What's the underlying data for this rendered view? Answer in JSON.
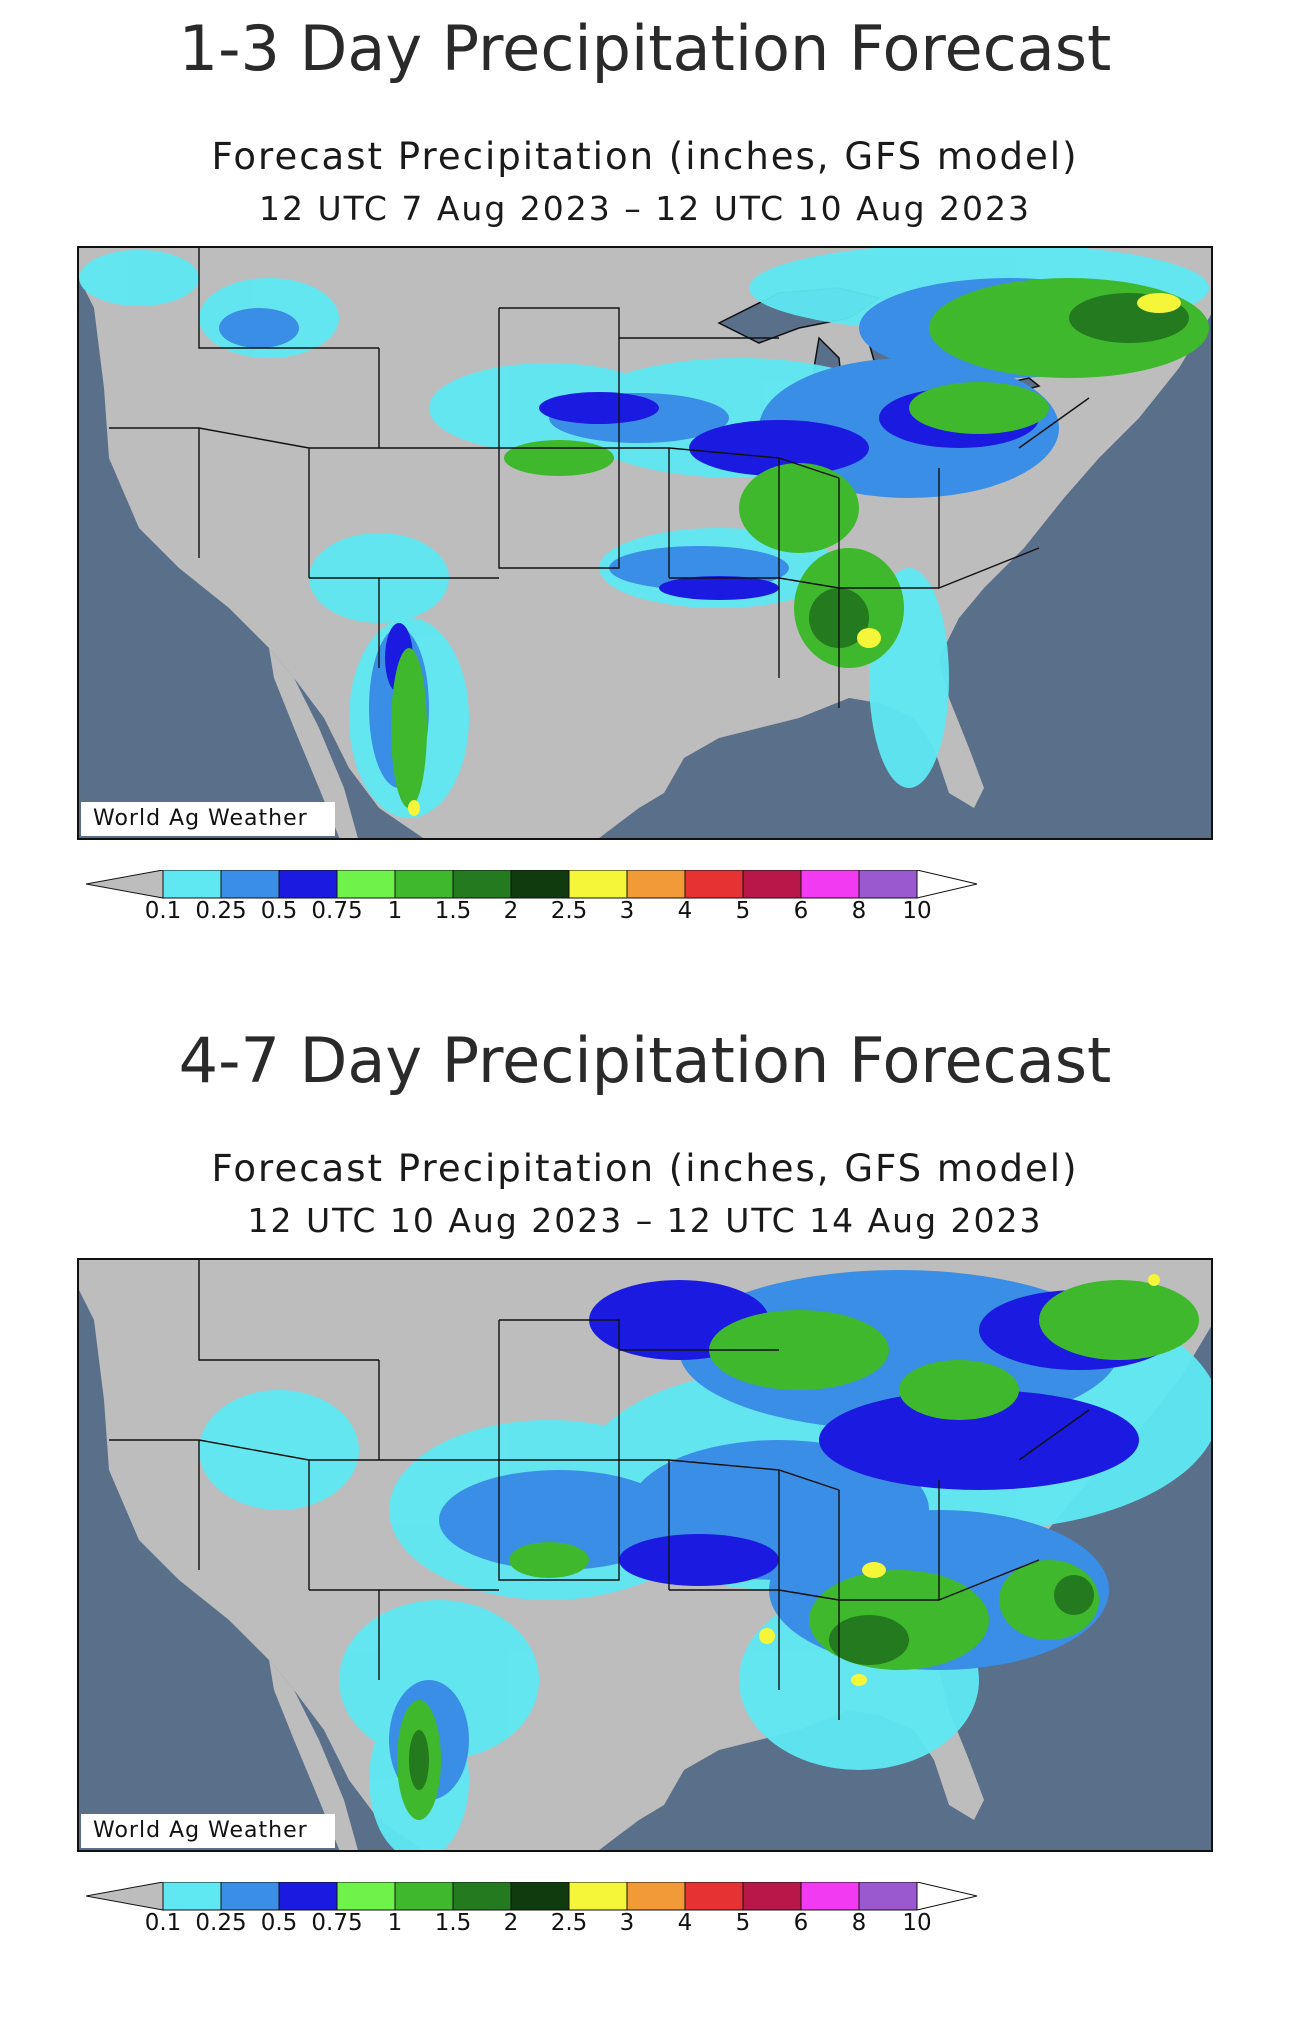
{
  "panels": [
    {
      "heading": "1-3 Day Precipitation Forecast",
      "subtitle": "Forecast Precipitation (inches, GFS model)",
      "period": "12 UTC 7 Aug 2023 – 12 UTC 10 Aug 2023",
      "credit": "World Ag Weather"
    },
    {
      "heading": "4-7 Day Precipitation Forecast",
      "subtitle": "Forecast Precipitation (inches, GFS model)",
      "period": "12 UTC 10 Aug 2023 – 12 UTC 14 Aug 2023",
      "credit": "World Ag Weather"
    }
  ],
  "legend": {
    "ticks": [
      "0.1",
      "0.25",
      "0.5",
      "0.75",
      "1",
      "1.5",
      "2",
      "2.5",
      "3",
      "4",
      "5",
      "6",
      "8",
      "10"
    ],
    "colors": [
      "#bdbdbd",
      "#5fe8f2",
      "#3a8ee6",
      "#1a1ae0",
      "#6ff24a",
      "#3fb82e",
      "#237a1f",
      "#0f3b0f",
      "#f5f53a",
      "#f29a38",
      "#e63232",
      "#b8174a",
      "#f23af2",
      "#9b59d0",
      "#ffffff"
    ]
  },
  "colors": {
    "ocean": "#5a6f8a",
    "land": "#bdbdbd",
    "lakes": "#5a6f8a",
    "borders": "#111111"
  }
}
